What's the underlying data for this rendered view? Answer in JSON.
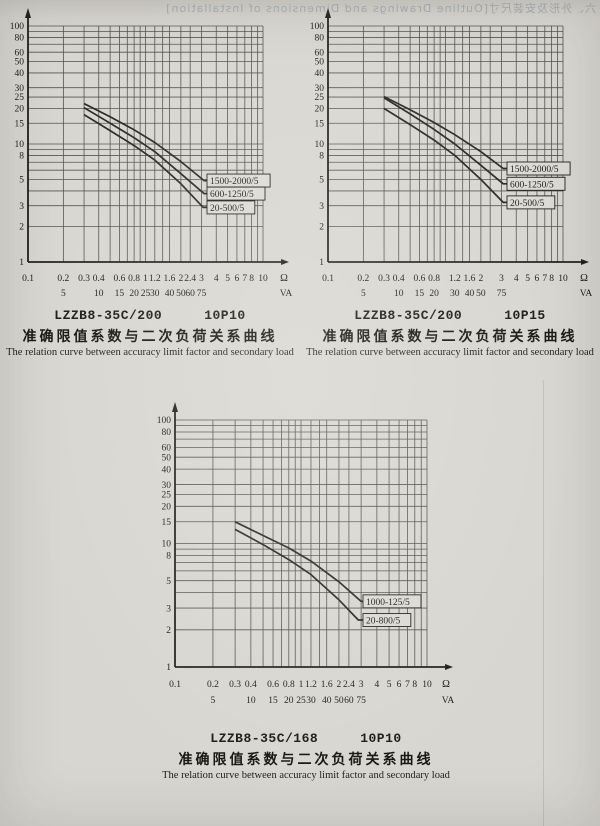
{
  "colors": {
    "paper": "#d8d6d0",
    "grid": "#54534e",
    "axis": "#1f1f1c",
    "curve": "#262623",
    "text": "#1b1b18",
    "label_box_fill": "#dcdad4"
  },
  "ghost_header": "六、外形及安装尺寸[Outline Drawings and Dimensions of Installation]",
  "chart_data": [
    {
      "type": "line",
      "model": "LZZB8-35C/200",
      "accuracy_class": "10P10",
      "title_zh": "准确限值系数与二次负荷关系曲线",
      "title_en": "The relation curve between accuracy limit factor and secondary load",
      "x_unit": "Ω",
      "x_unit2": "VA",
      "xlim": [
        0.1,
        10
      ],
      "ylim": [
        1,
        100
      ],
      "x_ticks": [
        0.1,
        0.2,
        0.3,
        0.4,
        0.6,
        0.8,
        1,
        1.2,
        1.6,
        2,
        2.4,
        3,
        4,
        5,
        6,
        7,
        8,
        10
      ],
      "va_ticks": [
        5,
        10,
        15,
        20,
        25,
        30,
        40,
        50,
        60,
        75
      ],
      "y_ticks": [
        100,
        80,
        60,
        50,
        40,
        30,
        25,
        20,
        15,
        10,
        8,
        5,
        3,
        2,
        1
      ],
      "x_grid": [
        0.2,
        0.3,
        0.4,
        0.5,
        0.6,
        0.7,
        0.8,
        0.9,
        1,
        1.2,
        1.4,
        1.6,
        2,
        2.4,
        3,
        4,
        5,
        6,
        7,
        8,
        9,
        10
      ],
      "y_grid": [
        2,
        3,
        4,
        5,
        6,
        7,
        8,
        9,
        10,
        15,
        20,
        25,
        30,
        40,
        50,
        60,
        70,
        80,
        90,
        100
      ],
      "series": [
        {
          "name": "1500-2000/5",
          "points": [
            [
              0.3,
              22
            ],
            [
              0.5,
              17
            ],
            [
              0.8,
              13.2
            ],
            [
              1.2,
              10.3
            ],
            [
              2,
              7.1
            ],
            [
              3.15,
              4.9
            ]
          ]
        },
        {
          "name": "600-1250/5",
          "points": [
            [
              0.3,
              20.3
            ],
            [
              0.5,
              15
            ],
            [
              0.8,
              11.3
            ],
            [
              1.2,
              8.6
            ],
            [
              2,
              5.6
            ],
            [
              3.15,
              3.8
            ]
          ]
        },
        {
          "name": "20-500/5",
          "points": [
            [
              0.3,
              17.7
            ],
            [
              0.5,
              13
            ],
            [
              0.8,
              9.7
            ],
            [
              1.2,
              7.3
            ],
            [
              2,
              4.6
            ],
            [
              3.1,
              2.9
            ]
          ]
        }
      ]
    },
    {
      "type": "line",
      "model": "LZZB8-35C/200",
      "accuracy_class": "10P15",
      "title_zh": "准确限值系数与二次负荷关系曲线",
      "title_en": "The relation curve between accuracy limit factor and secondary load",
      "x_unit": "Ω",
      "x_unit2": "VA",
      "xlim": [
        0.1,
        10
      ],
      "ylim": [
        1,
        100
      ],
      "x_ticks": [
        0.1,
        0.2,
        0.3,
        0.4,
        0.6,
        0.8,
        1.2,
        1.6,
        2,
        3,
        4,
        5,
        6,
        7,
        8,
        10
      ],
      "va_ticks": [
        5,
        10,
        15,
        20,
        30,
        40,
        50,
        75
      ],
      "y_ticks": [
        100,
        80,
        60,
        50,
        40,
        30,
        25,
        20,
        15,
        10,
        8,
        5,
        3,
        2,
        1
      ],
      "x_grid": [
        0.2,
        0.3,
        0.4,
        0.5,
        0.6,
        0.7,
        0.8,
        0.9,
        1,
        1.2,
        1.4,
        1.6,
        2,
        2.4,
        3,
        4,
        5,
        6,
        7,
        8,
        9,
        10
      ],
      "y_grid": [
        2,
        3,
        4,
        5,
        6,
        7,
        8,
        9,
        10,
        15,
        20,
        25,
        30,
        40,
        50,
        60,
        70,
        80,
        90,
        100
      ],
      "series": [
        {
          "name": "1500-2000/5",
          "points": [
            [
              0.3,
              25.2
            ],
            [
              0.5,
              19.5
            ],
            [
              0.8,
              15.2
            ],
            [
              1.2,
              12
            ],
            [
              2,
              8.6
            ],
            [
              3.1,
              6.2
            ]
          ]
        },
        {
          "name": "600-1250/5",
          "points": [
            [
              0.3,
              24.6
            ],
            [
              0.5,
              18
            ],
            [
              0.8,
              13.3
            ],
            [
              1.2,
              10
            ],
            [
              2,
              6.6
            ],
            [
              3.1,
              4.6
            ]
          ]
        },
        {
          "name": "20-500/5",
          "points": [
            [
              0.3,
              20
            ],
            [
              0.5,
              14.6
            ],
            [
              0.8,
              10.8
            ],
            [
              1.2,
              8
            ],
            [
              2,
              5
            ],
            [
              3.1,
              3.2
            ]
          ]
        }
      ]
    },
    {
      "type": "line",
      "model": "LZZB8-35C/168",
      "accuracy_class": "10P10",
      "title_zh": "准确限值系数与二次负荷关系曲线",
      "title_en": "The relation curve between accuracy limit factor and secondary load",
      "x_unit": "Ω",
      "x_unit2": "VA",
      "xlim": [
        0.1,
        10
      ],
      "ylim": [
        1,
        100
      ],
      "x_ticks": [
        0.1,
        0.2,
        0.3,
        0.4,
        0.6,
        0.8,
        1,
        1.2,
        1.6,
        2,
        2.4,
        3,
        4,
        5,
        6,
        7,
        8,
        10
      ],
      "va_ticks": [
        5,
        10,
        15,
        20,
        25,
        30,
        40,
        50,
        60,
        75
      ],
      "y_ticks": [
        100,
        80,
        60,
        50,
        40,
        30,
        25,
        20,
        15,
        10,
        8,
        5,
        3,
        2,
        1
      ],
      "x_grid": [
        0.2,
        0.3,
        0.4,
        0.5,
        0.6,
        0.7,
        0.8,
        0.9,
        1,
        1.2,
        1.4,
        1.6,
        2,
        2.4,
        3,
        4,
        5,
        6,
        7,
        8,
        9,
        10
      ],
      "y_grid": [
        2,
        3,
        4,
        5,
        6,
        7,
        8,
        9,
        10,
        15,
        20,
        25,
        30,
        40,
        50,
        60,
        70,
        80,
        90,
        100
      ],
      "series": [
        {
          "name": "1000-125/5",
          "points": [
            [
              0.3,
              15
            ],
            [
              0.5,
              11.6
            ],
            [
              0.8,
              9.2
            ],
            [
              1.2,
              7.2
            ],
            [
              2,
              4.9
            ],
            [
              3.0,
              3.4
            ]
          ]
        },
        {
          "name": "20-800/5",
          "points": [
            [
              0.3,
              13
            ],
            [
              0.5,
              9.8
            ],
            [
              0.8,
              7.4
            ],
            [
              1.2,
              5.6
            ],
            [
              2,
              3.5
            ],
            [
              2.85,
              2.4
            ]
          ]
        }
      ]
    }
  ]
}
